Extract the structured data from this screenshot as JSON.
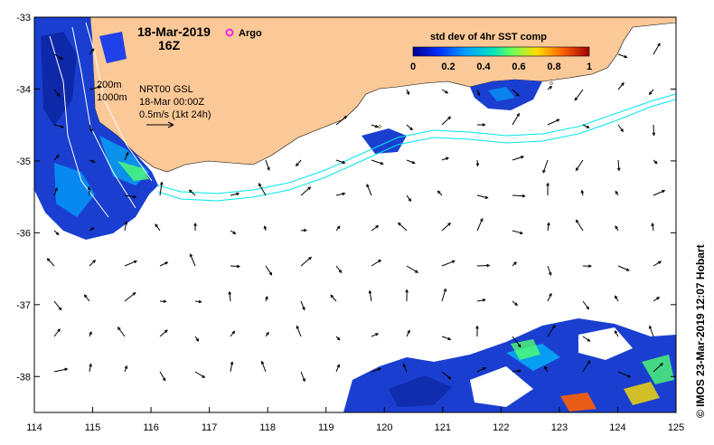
{
  "map": {
    "date_line1": "18-Mar-2019",
    "date_line2": "16Z",
    "argo_label": "Argo",
    "colorbar_title": "std dev of 4hr SST comp",
    "colorbar_ticks": [
      "0",
      "0.2",
      "0.4",
      "0.6",
      "0.8",
      "1"
    ],
    "depth_200": "200m",
    "depth_1000": "1000m",
    "current_source": "NRT00 GSL",
    "current_time": "18-Mar 00:00Z",
    "scale_label": "0.5m/s (1kt 24h)",
    "credit": "© IMOS 23-Mar-2019 12:07 Hobart",
    "lon_ticks": [
      "114",
      "115",
      "116",
      "117",
      "118",
      "119",
      "120",
      "121",
      "122",
      "123",
      "124",
      "125"
    ],
    "lat_ticks": [
      "-33",
      "-34",
      "-35",
      "-36",
      "-37",
      "-38"
    ],
    "lon_range": [
      114,
      125
    ],
    "lat_range": [
      -38.5,
      -33
    ],
    "colors": {
      "land": "#fbc897",
      "contour": "#00e5ee",
      "argo": "#ff00ff"
    }
  }
}
